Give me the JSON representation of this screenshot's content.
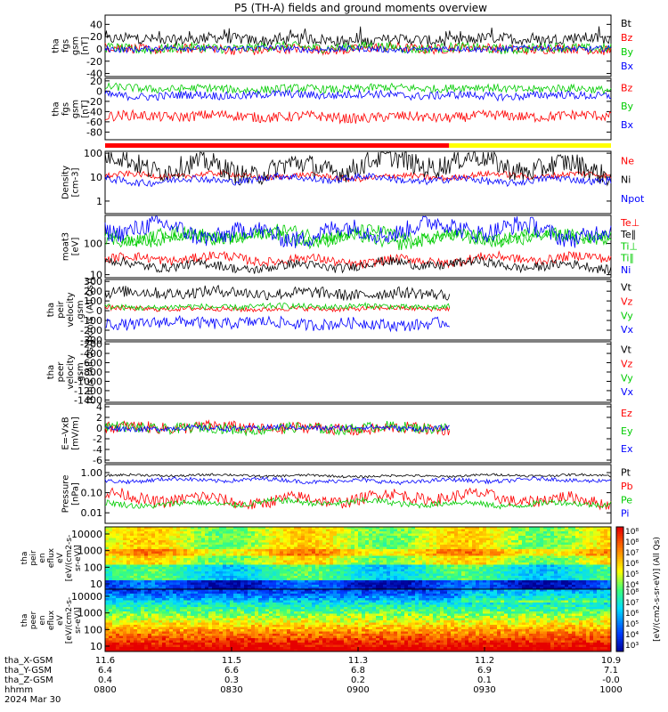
{
  "title": "P5 (TH-A) fields and ground moments overview",
  "chart_data": {
    "type": "line",
    "x": {
      "tick_rows": [
        {
          "label": "tha_X-GSM",
          "values": [
            "11.6",
            "11.5",
            "11.3",
            "11.2",
            "10.9"
          ]
        },
        {
          "label": "tha_Y-GSM",
          "values": [
            "6.4",
            "6.6",
            "6.8",
            "6.9",
            "7.1"
          ]
        },
        {
          "label": "tha_Z-GSM",
          "values": [
            "0.4",
            "0.3",
            "0.2",
            "0.1",
            "-0.0"
          ]
        },
        {
          "label": "hhmm",
          "values": [
            "0800",
            "0830",
            "0900",
            "0930",
            "1000"
          ]
        }
      ],
      "date": "2024 Mar 30"
    },
    "mode_bar": {
      "segments": [
        {
          "color": "#ff0000",
          "end": 0.68
        },
        {
          "color": "#ffff00",
          "end": 1.0
        }
      ]
    },
    "panels": [
      {
        "ylabel": [
          "tha",
          "fgs",
          "gsm",
          "[nT]"
        ],
        "ticks": [
          "40",
          "20",
          "0",
          "-20",
          "-40"
        ],
        "ylim": [
          -45,
          55
        ],
        "series": [
          {
            "name": "Bt",
            "color": "#000000",
            "base": 15,
            "amp": 9,
            "spiky": true
          },
          {
            "name": "Bz",
            "color": "#ff0000",
            "base": 0,
            "amp": 8
          },
          {
            "name": "By",
            "color": "#00cc00",
            "base": 2,
            "amp": 8
          },
          {
            "name": "Bx",
            "color": "#0000ff",
            "base": 0,
            "amp": 5
          }
        ]
      },
      {
        "ylabel": [
          "tha",
          "fgs",
          "gsm",
          "[nT]"
        ],
        "ticks": [
          "20",
          "0",
          "-20",
          "-40",
          "-60",
          "-80"
        ],
        "ylim": [
          -95,
          25
        ],
        "series": [
          {
            "name": "Bz",
            "color": "#ff0000",
            "base": -50,
            "amp": 10
          },
          {
            "name": "By",
            "color": "#00cc00",
            "base": 5,
            "amp": 8
          },
          {
            "name": "Bx",
            "color": "#0000ff",
            "base": -8,
            "amp": 8
          }
        ]
      },
      {
        "ylabel": [
          "Density",
          "[cm-3]"
        ],
        "ticks": [
          "100",
          "10",
          "1"
        ],
        "ylim": [
          0.3,
          120
        ],
        "log": true,
        "series": [
          {
            "name": "Ne",
            "color": "#ff0000",
            "base": 11,
            "amp": 0.25
          },
          {
            "name": "Ni",
            "color": "#000000",
            "base": 30,
            "amp": 0.9
          },
          {
            "name": "Npot",
            "color": "#0000ff",
            "base": 8,
            "amp": 0.3
          }
        ]
      },
      {
        "ylabel": [
          "moat3",
          "[eV]"
        ],
        "ticks": [
          "100",
          "10"
        ],
        "ylim": [
          8,
          800
        ],
        "log": true,
        "series": [
          {
            "name": "Te⊥",
            "color": "#ff0000",
            "base": 30,
            "amp": 0.3
          },
          {
            "name": "Te∥",
            "color": "#000000",
            "base": 20,
            "amp": 0.3
          },
          {
            "name": "Ti⊥",
            "color": "#00cc00",
            "base": 180,
            "amp": 0.4
          },
          {
            "name": "Ti∥",
            "color": "#00cc00",
            "base": 150,
            "amp": 0.4
          },
          {
            "name": "Ni",
            "color": "#0000ff",
            "base": 250,
            "amp": 0.6
          }
        ]
      },
      {
        "ylabel": [
          "tha",
          "peir",
          "velocity",
          "gsm",
          "[km/s (All Qs)]"
        ],
        "ticks": [
          "300",
          "200",
          "100",
          "0",
          "-100",
          "-200",
          "-300"
        ],
        "ylim": [
          -300,
          320
        ],
        "xmax": 0.68,
        "series": [
          {
            "name": "Vt",
            "color": "#000000",
            "base": 180,
            "amp": 60
          },
          {
            "name": "Vz",
            "color": "#ff0000",
            "base": 20,
            "amp": 25
          },
          {
            "name": "Vy",
            "color": "#00cc00",
            "base": 40,
            "amp": 30
          },
          {
            "name": "Vx",
            "color": "#0000ff",
            "base": -130,
            "amp": 60
          }
        ]
      },
      {
        "ylabel": [
          "tha",
          "peer",
          "velocity",
          "gsm",
          "[km/s (All Qs)]"
        ],
        "ticks": [
          "-200",
          "-400",
          "-600",
          "-800",
          "-1000",
          "-1200",
          "-1400"
        ],
        "ylim": [
          -1450,
          -150
        ],
        "series": [
          {
            "name": "Vt",
            "color": "#000000"
          },
          {
            "name": "Vz",
            "color": "#ff0000"
          },
          {
            "name": "Vy",
            "color": "#00cc00"
          },
          {
            "name": "Vx",
            "color": "#0000ff"
          }
        ]
      },
      {
        "ylabel": [
          "E=-VxB",
          "[mV/m]"
        ],
        "ticks": [
          "4",
          "2",
          "0",
          "-2",
          "-4",
          "-6"
        ],
        "ylim": [
          -6.5,
          4.5
        ],
        "xmax": 0.68,
        "series": [
          {
            "name": "Ez",
            "color": "#ff0000",
            "base": 0,
            "amp": 1.1
          },
          {
            "name": "Ey",
            "color": "#00cc00",
            "base": 0,
            "amp": 1.0
          },
          {
            "name": "Ex",
            "color": "#0000ff",
            "base": 0,
            "amp": 0.5
          }
        ]
      },
      {
        "ylabel": [
          "Pressure",
          "[nPa]"
        ],
        "ticks": [
          "1.00",
          "0.10",
          "0.01"
        ],
        "ylim": [
          0.003,
          2.5
        ],
        "log": true,
        "series": [
          {
            "name": "Pt",
            "color": "#000000",
            "base": 0.7,
            "amp": 0.12
          },
          {
            "name": "Pb",
            "color": "#ff0000",
            "base": 0.05,
            "amp": 0.6
          },
          {
            "name": "Pe",
            "color": "#00cc00",
            "base": 0.03,
            "amp": 0.3
          },
          {
            "name": "Pi",
            "color": "#0000ff",
            "base": 0.4,
            "amp": 0.2
          }
        ]
      }
    ],
    "spectrograms": [
      {
        "ylabel": [
          "tha",
          "peir",
          "en",
          "eflux",
          "eV",
          "[eV/(cm2-s-",
          "sr-eV)]"
        ],
        "ticks": [
          "10000",
          "1000",
          "100",
          "10"
        ],
        "kind": "ion"
      },
      {
        "ylabel": [
          "tha",
          "peer",
          "en",
          "eflux",
          "eV",
          "[eV/(cm2-s-",
          "sr-eV)]"
        ],
        "ticks": [
          "10000",
          "1000",
          "100",
          "10"
        ],
        "kind": "electron"
      }
    ],
    "colorbar": {
      "ticks_top": [
        "10⁸",
        "10⁸",
        "10⁷",
        "10⁶",
        "10⁵",
        "10⁴"
      ],
      "ticks_bottom": [
        "10⁸",
        "10⁷",
        "10⁶",
        "10⁵",
        "10⁴",
        "10³"
      ],
      "label": "[eV/(cm2-s-sr-eV)] (All Qs)"
    }
  }
}
